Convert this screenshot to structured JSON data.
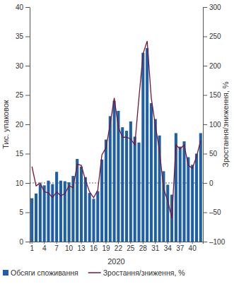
{
  "chart_data": {
    "type": "bar",
    "x_label": "2020",
    "y_label": "Тис. упаковок",
    "y2_label": "Зростання/зниження, %",
    "categories": [
      "1",
      null,
      null,
      "4",
      null,
      null,
      "7",
      null,
      null,
      "10",
      null,
      null,
      "13",
      null,
      null,
      "16",
      null,
      null,
      "19",
      null,
      null,
      "22",
      null,
      null,
      "25",
      null,
      null,
      "28",
      null,
      null,
      "31",
      null,
      null,
      "34",
      null,
      null,
      "37",
      null,
      null,
      "40",
      null,
      null
    ],
    "series": [
      {
        "name": "Обсяги споживання",
        "type": "bar",
        "color": "#1f5fa8",
        "values": [
          7.4,
          8.2,
          9.8,
          9.6,
          10.4,
          9.8,
          11.9,
          10.4,
          10.3,
          10.1,
          11.2,
          14.1,
          12.8,
          11.0,
          8.3,
          7.3,
          8.6,
          14.0,
          17.4,
          21.4,
          24.0,
          22.3,
          19.5,
          18.9,
          20.5,
          17.9,
          16.9,
          32.2,
          33.0,
          23.6,
          20.9,
          18.1,
          12.0,
          9.7,
          8.0,
          18.5,
          16.2,
          17.1,
          14.4,
          13.1,
          15.0,
          18.5
        ]
      },
      {
        "name": "Зростання/зниження, %",
        "type": "line",
        "color": "#7b1535",
        "axis": "y2",
        "values": [
          28,
          -5,
          0,
          -15,
          -17,
          -25,
          -15,
          -22,
          -18,
          -5,
          -8,
          32,
          30,
          5,
          -15,
          -25,
          -12,
          48,
          60,
          100,
          145,
          95,
          78,
          78,
          75,
          65,
          145,
          220,
          242,
          145,
          98,
          55,
          -10,
          -30,
          -60,
          65,
          58,
          65,
          30,
          25,
          45,
          72
        ]
      }
    ],
    "ylim": [
      0,
      40
    ],
    "yticks": [
      0,
      5,
      10,
      15,
      20,
      25,
      30,
      35,
      40
    ],
    "y2lim": [
      -100,
      300
    ],
    "y2ticks": [
      {
        "value": -100,
        "label": "–100"
      },
      {
        "value": -50,
        "label": "–50"
      },
      0,
      50,
      100,
      150,
      200,
      250,
      300
    ],
    "legend": "bottom"
  }
}
